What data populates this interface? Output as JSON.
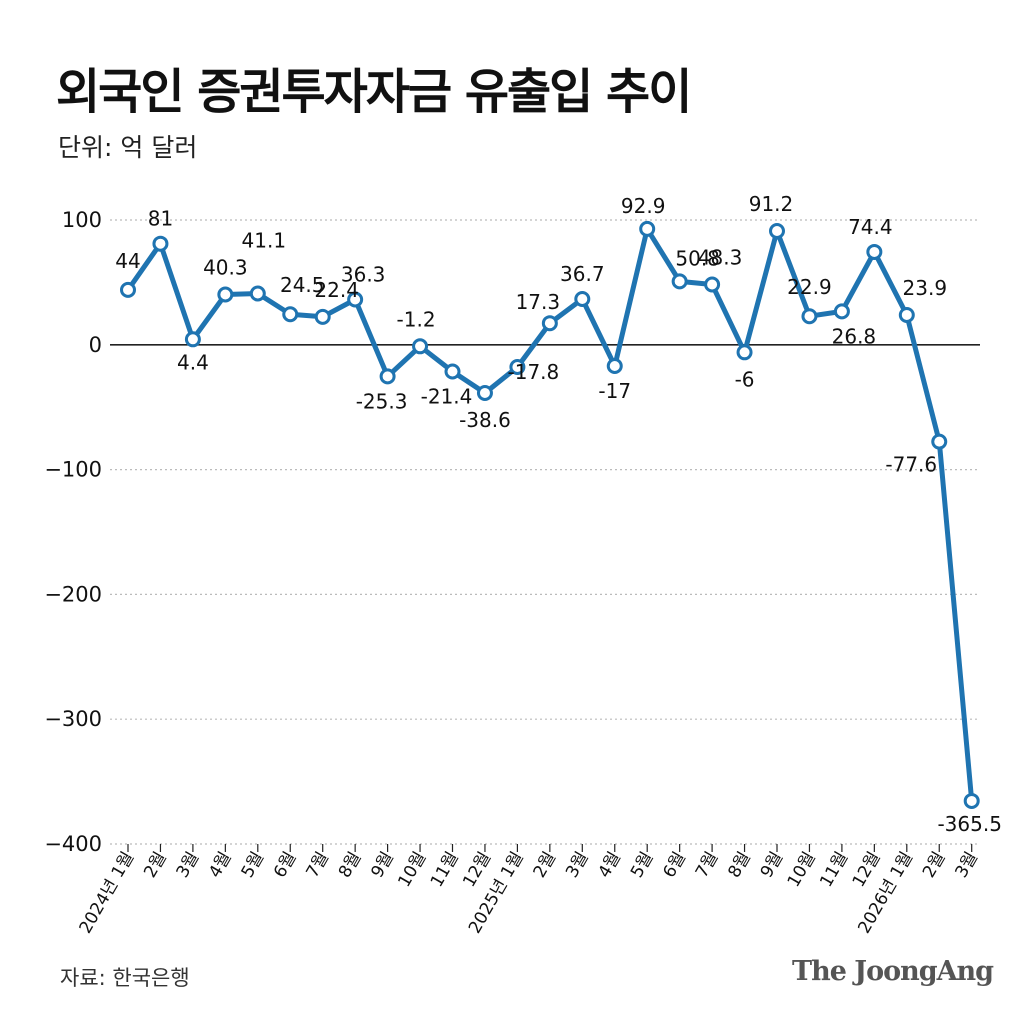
{
  "header": {
    "title": "외국인 증권투자자금 유출입 추이",
    "unit": "단위: 억 달러"
  },
  "footer": {
    "source": "자료: 한국은행",
    "brand": "The JoongAng"
  },
  "colors": {
    "line": "#1f74b1",
    "marker_fill": "#ffffff",
    "zero_line": "#222222",
    "grid": "#bbbbbb"
  },
  "chart_data": {
    "type": "line",
    "title": "외국인 증권투자자금 유출입 추이",
    "ylabel": "단위: 억 달러",
    "xlabel": "",
    "ylim": [
      -400,
      100
    ],
    "yticks": [
      100,
      0,
      -100,
      -200,
      -300,
      -400
    ],
    "yticklabels": [
      "100",
      "0",
      "−100",
      "−200",
      "−300",
      "−400"
    ],
    "grid": true,
    "categories": [
      "2024년 1월",
      "2월",
      "3월",
      "4월",
      "5월",
      "6월",
      "7월",
      "8월",
      "9월",
      "10월",
      "11월",
      "12월",
      "2025년 1월",
      "2월",
      "3월",
      "4월",
      "5월",
      "6월",
      "7월",
      "8월",
      "9월",
      "10월",
      "11월",
      "12월",
      "2026년 1월",
      "2월",
      "3월"
    ],
    "values": [
      44,
      81,
      4.4,
      40.3,
      41.1,
      24.5,
      22.4,
      36.3,
      -25.3,
      -1.2,
      -21.4,
      -38.6,
      -17.8,
      17.3,
      36.7,
      -17,
      92.9,
      50.8,
      48.3,
      -6,
      91.2,
      22.9,
      26.8,
      74.4,
      23.9,
      -77.6,
      -365.5
    ],
    "labels": [
      "44",
      "81",
      "4.4",
      "40.3",
      "41.1",
      "24.5",
      "22.4",
      "36.3",
      "-25.3",
      "-1.2",
      "-21.4",
      "-38.6",
      "-17.8",
      "17.3",
      "36.7",
      "-17",
      "92.9",
      "50.8",
      "48.3",
      "-6",
      "91.2",
      "22.9",
      "26.8",
      "74.4",
      "23.9",
      "-77.6",
      "-365.5"
    ]
  }
}
